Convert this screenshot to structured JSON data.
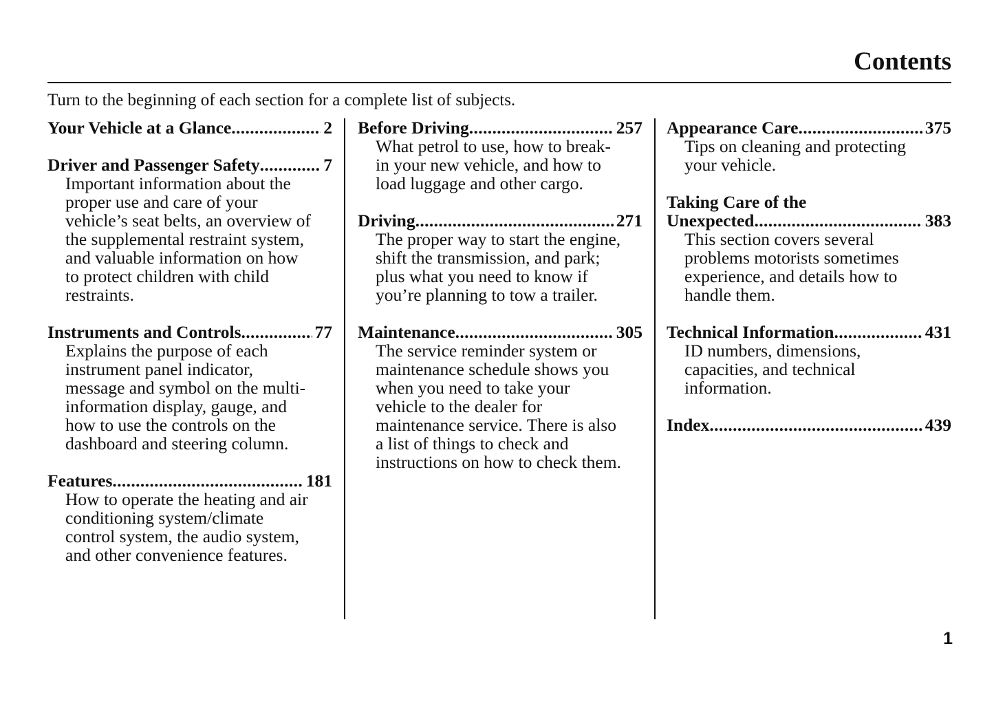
{
  "title": "Contents",
  "intro": "Turn to the beginning of each section for a complete list of subjects.",
  "columns": [
    [
      {
        "heading": [
          "Your Vehicle at a Glance"
        ],
        "page": "2",
        "desc": []
      },
      {
        "heading": [
          "Driver and Passenger Safety"
        ],
        "page": "7",
        "desc": [
          "Important information about the",
          "proper use and care of your",
          "vehicle’s seat belts, an overview of",
          "the supplemental restraint system,",
          "and valuable information on how",
          "to protect children with child",
          "restraints."
        ]
      },
      {
        "heading": [
          "Instruments and Controls"
        ],
        "page": "77",
        "desc": [
          "Explains the purpose of each",
          "instrument panel indicator,",
          "message and symbol on the multi-",
          "information display, gauge, and",
          "how to use the controls on the",
          "dashboard and steering column."
        ]
      },
      {
        "heading": [
          "Features"
        ],
        "page": "181",
        "desc": [
          "How to operate the heating and air",
          "conditioning system/climate",
          "control system, the audio system,",
          "and other convenience features."
        ]
      }
    ],
    [
      {
        "heading": [
          "Before Driving"
        ],
        "page": "257",
        "desc": [
          "What petrol to use, how to break-",
          "in your new vehicle, and how to",
          "load luggage and other cargo."
        ]
      },
      {
        "heading": [
          "Driving"
        ],
        "page": "271",
        "desc": [
          "The proper way to start the engine,",
          "shift the transmission, and park;",
          "plus what you need to know if",
          "you’re planning to tow a trailer."
        ]
      },
      {
        "heading": [
          "Maintenance"
        ],
        "page": "305",
        "desc": [
          "The service reminder system or",
          "maintenance schedule shows you",
          "when you need to take your",
          "vehicle to the dealer for",
          "maintenance service. There is also",
          "a list of things to check and",
          "instructions on how to check them."
        ]
      }
    ],
    [
      {
        "heading": [
          "Appearance Care"
        ],
        "page": "375",
        "desc": [
          "Tips on cleaning and protecting",
          "your vehicle."
        ]
      },
      {
        "heading": [
          "Taking Care of the",
          "Unexpected"
        ],
        "page": "383",
        "desc": [
          "This section covers several",
          "problems motorists sometimes",
          "experience, and details how to",
          "handle them."
        ]
      },
      {
        "heading": [
          "Technical Information"
        ],
        "page": "431",
        "desc": [
          "ID numbers, dimensions,",
          "capacities, and technical",
          "information."
        ]
      },
      {
        "heading": [
          "Index"
        ],
        "page": "439",
        "desc": []
      }
    ]
  ],
  "page_number": "1"
}
